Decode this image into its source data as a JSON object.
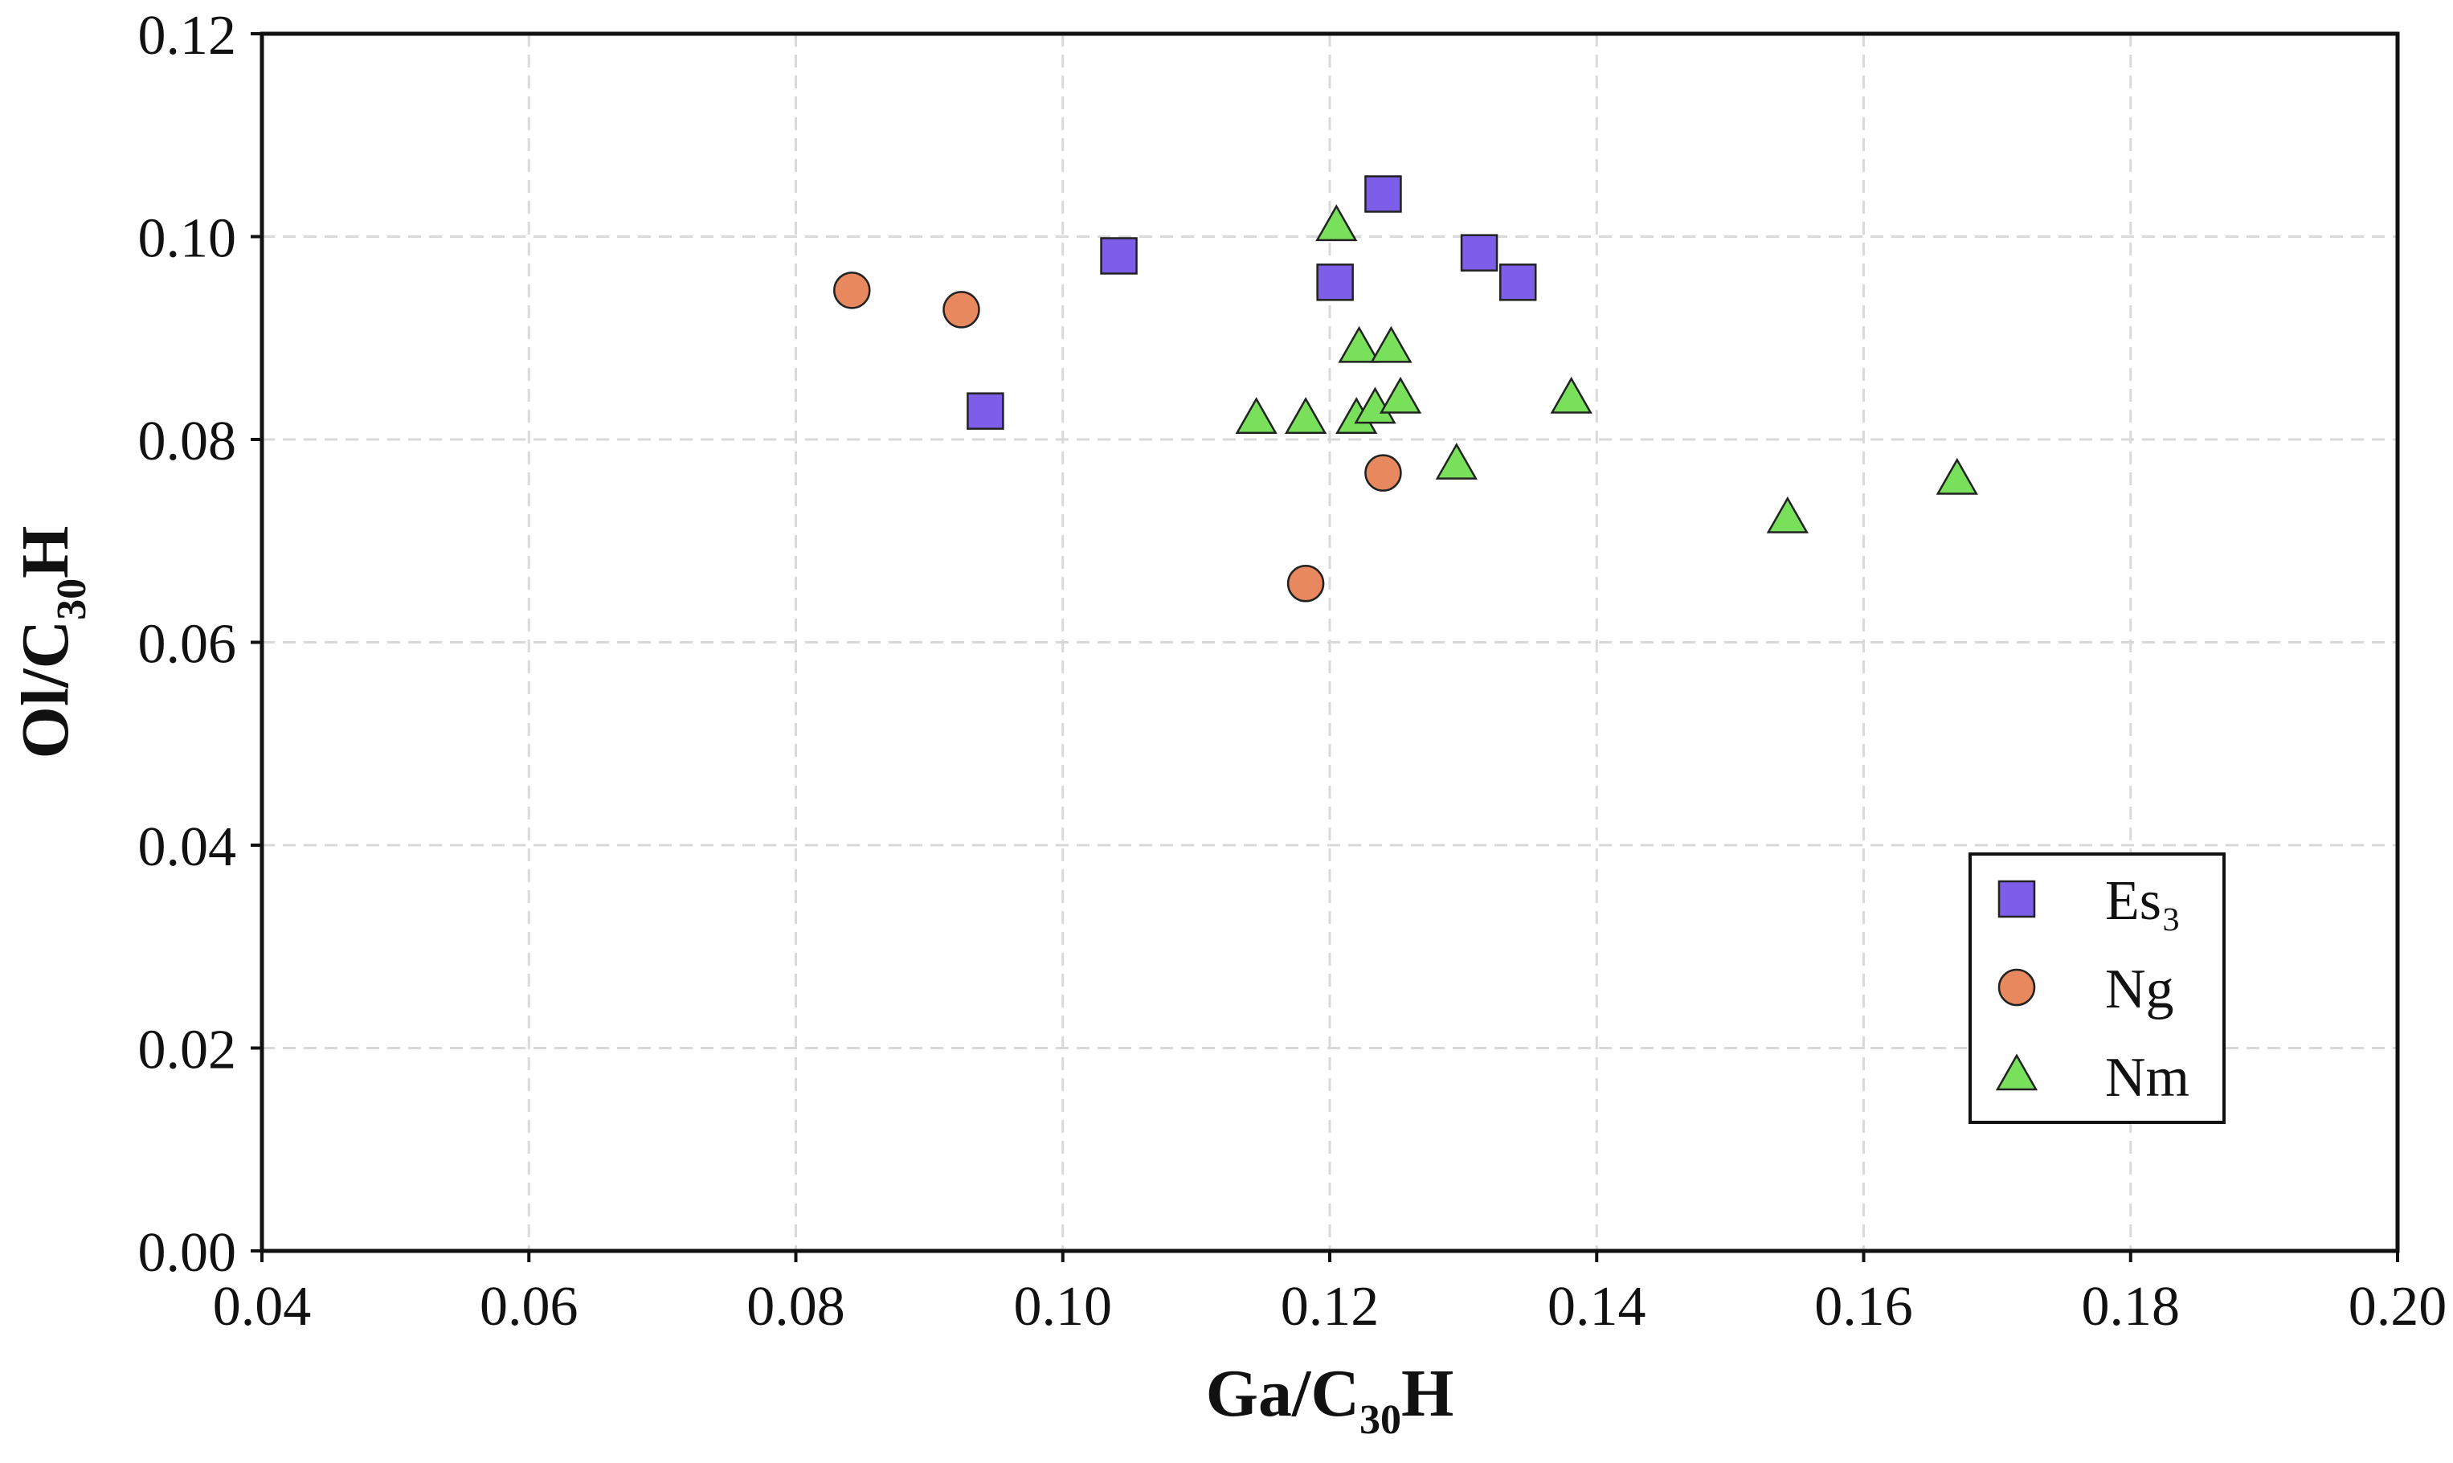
{
  "chart_data": {
    "type": "scatter",
    "title": "",
    "xlabel": {
      "main": "Ga/C",
      "sub": "30",
      "tail": "H"
    },
    "ylabel": {
      "main": "Ol/C",
      "sub": "30",
      "tail": "H"
    },
    "xlim": [
      0.04,
      0.2
    ],
    "ylim": [
      0.0,
      0.12
    ],
    "xticks": [
      "0.04",
      "0.06",
      "0.08",
      "0.10",
      "0.12",
      "0.14",
      "0.16",
      "0.18",
      "0.20"
    ],
    "yticks": [
      "0.00",
      "0.02",
      "0.04",
      "0.06",
      "0.08",
      "0.10",
      "0.12"
    ],
    "grid": true,
    "legend_position": "lower-right",
    "series": [
      {
        "name": "Es₃",
        "marker": "square",
        "color": "#7d5ee8",
        "points": [
          {
            "x": 0.0942,
            "y": 0.0828
          },
          {
            "x": 0.1042,
            "y": 0.0981
          },
          {
            "x": 0.1204,
            "y": 0.0955
          },
          {
            "x": 0.124,
            "y": 0.1042
          },
          {
            "x": 0.1312,
            "y": 0.0984
          },
          {
            "x": 0.1341,
            "y": 0.0955
          }
        ]
      },
      {
        "name": "Ng",
        "marker": "circle",
        "color": "#e8885e",
        "points": [
          {
            "x": 0.0842,
            "y": 0.0947
          },
          {
            "x": 0.0924,
            "y": 0.0928
          },
          {
            "x": 0.1182,
            "y": 0.0658
          },
          {
            "x": 0.124,
            "y": 0.0767
          }
        ]
      },
      {
        "name": "Nm",
        "marker": "triangle",
        "color": "#78e05a",
        "points": [
          {
            "x": 0.1145,
            "y": 0.082
          },
          {
            "x": 0.1182,
            "y": 0.082
          },
          {
            "x": 0.1205,
            "y": 0.101
          },
          {
            "x": 0.122,
            "y": 0.082
          },
          {
            "x": 0.1222,
            "y": 0.089
          },
          {
            "x": 0.1234,
            "y": 0.083
          },
          {
            "x": 0.1246,
            "y": 0.089
          },
          {
            "x": 0.1253,
            "y": 0.084
          },
          {
            "x": 0.1295,
            "y": 0.0775
          },
          {
            "x": 0.1381,
            "y": 0.084
          },
          {
            "x": 0.1543,
            "y": 0.0722
          },
          {
            "x": 0.167,
            "y": 0.076
          }
        ]
      }
    ]
  }
}
